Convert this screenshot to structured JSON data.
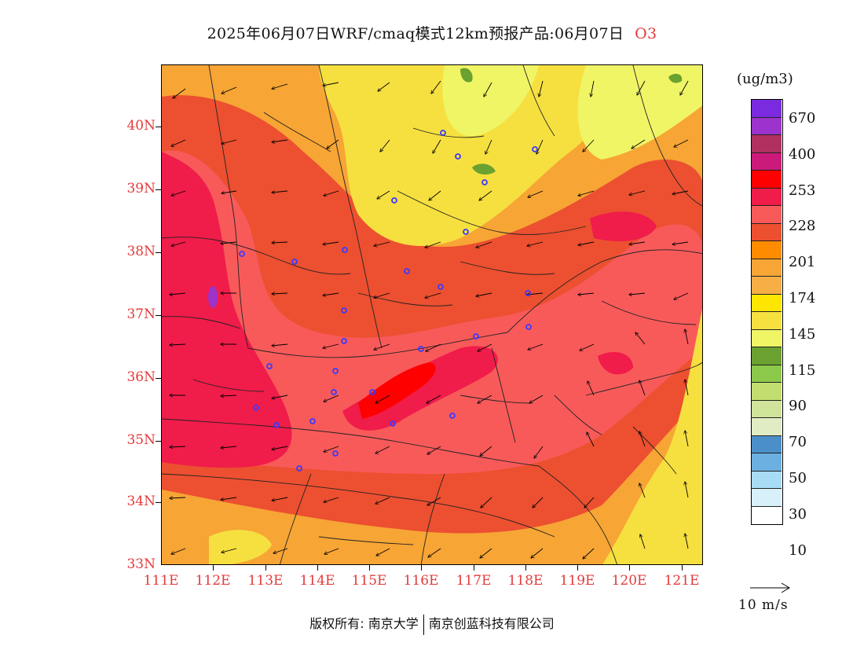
{
  "title": "2025年06月07日WRF/cmaq模式12km预报产品:06月07日",
  "variable": "O3",
  "unit": "(ug/m3)",
  "lat_labels": [
    "40N",
    "39N",
    "38N",
    "37N",
    "36N",
    "35N",
    "34N",
    "33N"
  ],
  "lon_labels": [
    "111E",
    "112E",
    "113E",
    "114E",
    "115E",
    "116E",
    "117E",
    "118E",
    "119E",
    "120E",
    "121E"
  ],
  "legend": {
    "colors": [
      "#7a2be0",
      "#9b33cc",
      "#b03060",
      "#cc1a7a",
      "#ff0000",
      "#f01c4a",
      "#f85a5a",
      "#ec5030",
      "#ff8c00",
      "#f7a535",
      "#f6ae45",
      "#ffe600",
      "#f6e040",
      "#f0f566",
      "#6aa130",
      "#8cc84a",
      "#c2de70",
      "#cfe39a",
      "#e0ecc4",
      "#4b8fc8",
      "#6bb0e0",
      "#a8dcf6",
      "#d8f0fa",
      "#ffffff"
    ],
    "labels": [
      "670",
      "400",
      "253",
      "228",
      "201",
      "174",
      "145",
      "115",
      "90",
      "70",
      "50",
      "30",
      "10"
    ]
  },
  "wind_reference": "10 m/s",
  "copyright": {
    "left": "版权所有: 南京大学",
    "right": "南京创蓝科技有限公司"
  },
  "map_colors": {
    "yellow": "#f6e040",
    "light_yellow": "#f0f566",
    "orange": "#f7a535",
    "dark_orange": "#ec5030",
    "salmon": "#f85a5a",
    "crimson": "#f01c4a",
    "red": "#ff0000",
    "purple": "#9b33cc",
    "green": "#6aa130",
    "station": "#3a3aff"
  }
}
